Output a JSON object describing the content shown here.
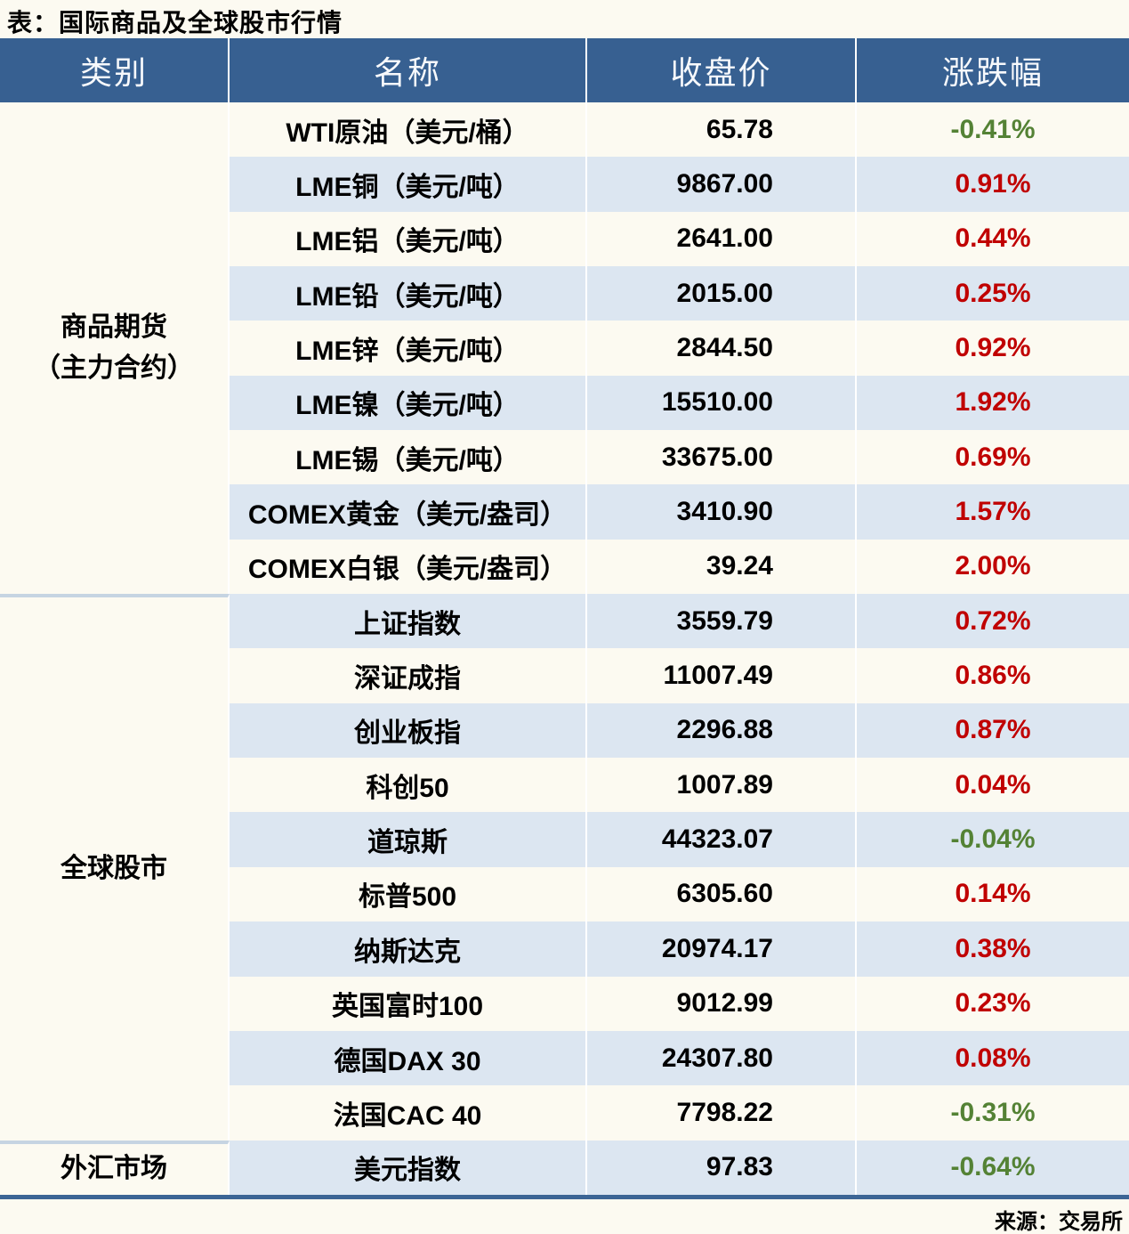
{
  "title": "表：国际商品及全球股市行情",
  "source": "来源：交易所",
  "colors": {
    "header_bg": "#376091",
    "stripe_row_bg": "#dce6f1",
    "positive_change": "#c00000",
    "negative_change": "#548235",
    "section_divider": "#c6d4e2",
    "table_bottom_border": "#3c6595"
  },
  "table": {
    "headers": [
      "类别",
      "名称",
      "收盘价",
      "涨跌幅"
    ],
    "sections": [
      {
        "category_line1": "商品期货",
        "category_line2": "（主力合约）",
        "rows": [
          {
            "name": "WTI原油（美元/桶）",
            "close": "65.78",
            "change": "-0.41%"
          },
          {
            "name": "LME铜（美元/吨）",
            "close": "9867.00",
            "change": "0.91%"
          },
          {
            "name": "LME铝（美元/吨）",
            "close": "2641.00",
            "change": "0.44%"
          },
          {
            "name": "LME铅（美元/吨）",
            "close": "2015.00",
            "change": "0.25%"
          },
          {
            "name": "LME锌（美元/吨）",
            "close": "2844.50",
            "change": "0.92%"
          },
          {
            "name": "LME镍（美元/吨）",
            "close": "15510.00",
            "change": "1.92%"
          },
          {
            "name": "LME锡（美元/吨）",
            "close": "33675.00",
            "change": "0.69%"
          },
          {
            "name": "COMEX黄金（美元/盎司）",
            "close": "3410.90",
            "change": "1.57%"
          },
          {
            "name": "COMEX白银（美元/盎司）",
            "close": "39.24",
            "change": "2.00%"
          }
        ]
      },
      {
        "category_line1": "全球股市",
        "category_line2": "",
        "rows": [
          {
            "name": "上证指数",
            "close": "3559.79",
            "change": "0.72%"
          },
          {
            "name": "深证成指",
            "close": "11007.49",
            "change": "0.86%"
          },
          {
            "name": "创业板指",
            "close": "2296.88",
            "change": "0.87%"
          },
          {
            "name": "科创50",
            "close": "1007.89",
            "change": "0.04%"
          },
          {
            "name": "道琼斯",
            "close": "44323.07",
            "change": "-0.04%"
          },
          {
            "name": "标普500",
            "close": "6305.60",
            "change": "0.14%"
          },
          {
            "name": "纳斯达克",
            "close": "20974.17",
            "change": "0.38%"
          },
          {
            "name": "英国富时100",
            "close": "9012.99",
            "change": "0.23%"
          },
          {
            "name": "德国DAX 30",
            "close": "24307.80",
            "change": "0.08%"
          },
          {
            "name": "法国CAC 40",
            "close": "7798.22",
            "change": "-0.31%"
          }
        ]
      },
      {
        "category_line1": "外汇市场",
        "category_line2": "",
        "rows": [
          {
            "name": "美元指数",
            "close": "97.83",
            "change": "-0.64%"
          }
        ]
      }
    ]
  },
  "chart_data": {
    "type": "table",
    "title": "表：国际商品及全球股市行情",
    "columns": [
      "类别",
      "名称",
      "收盘价",
      "涨跌幅"
    ],
    "rows": [
      [
        "商品期货（主力合约）",
        "WTI原油（美元/桶）",
        65.78,
        "-0.41%"
      ],
      [
        "商品期货（主力合约）",
        "LME铜（美元/吨）",
        9867.0,
        "0.91%"
      ],
      [
        "商品期货（主力合约）",
        "LME铝（美元/吨）",
        2641.0,
        "0.44%"
      ],
      [
        "商品期货（主力合约）",
        "LME铅（美元/吨）",
        2015.0,
        "0.25%"
      ],
      [
        "商品期货（主力合约）",
        "LME锌（美元/吨）",
        2844.5,
        "0.92%"
      ],
      [
        "商品期货（主力合约）",
        "LME镍（美元/吨）",
        15510.0,
        "1.92%"
      ],
      [
        "商品期货（主力合约）",
        "LME锡（美元/吨）",
        33675.0,
        "0.69%"
      ],
      [
        "商品期货（主力合约）",
        "COMEX黄金（美元/盎司）",
        3410.9,
        "1.57%"
      ],
      [
        "商品期货（主力合约）",
        "COMEX白银（美元/盎司）",
        39.24,
        "2.00%"
      ],
      [
        "全球股市",
        "上证指数",
        3559.79,
        "0.72%"
      ],
      [
        "全球股市",
        "深证成指",
        11007.49,
        "0.86%"
      ],
      [
        "全球股市",
        "创业板指",
        2296.88,
        "0.87%"
      ],
      [
        "全球股市",
        "科创50",
        1007.89,
        "0.04%"
      ],
      [
        "全球股市",
        "道琼斯",
        44323.07,
        "-0.04%"
      ],
      [
        "全球股市",
        "标普500",
        6305.6,
        "0.14%"
      ],
      [
        "全球股市",
        "纳斯达克",
        20974.17,
        "0.38%"
      ],
      [
        "全球股市",
        "英国富时100",
        9012.99,
        "0.23%"
      ],
      [
        "全球股市",
        "德国DAX 30",
        24307.8,
        "0.08%"
      ],
      [
        "全球股市",
        "法国CAC 40",
        7798.22,
        "-0.31%"
      ],
      [
        "外汇市场",
        "美元指数",
        97.83,
        "-0.64%"
      ]
    ],
    "source": "来源：交易所"
  }
}
